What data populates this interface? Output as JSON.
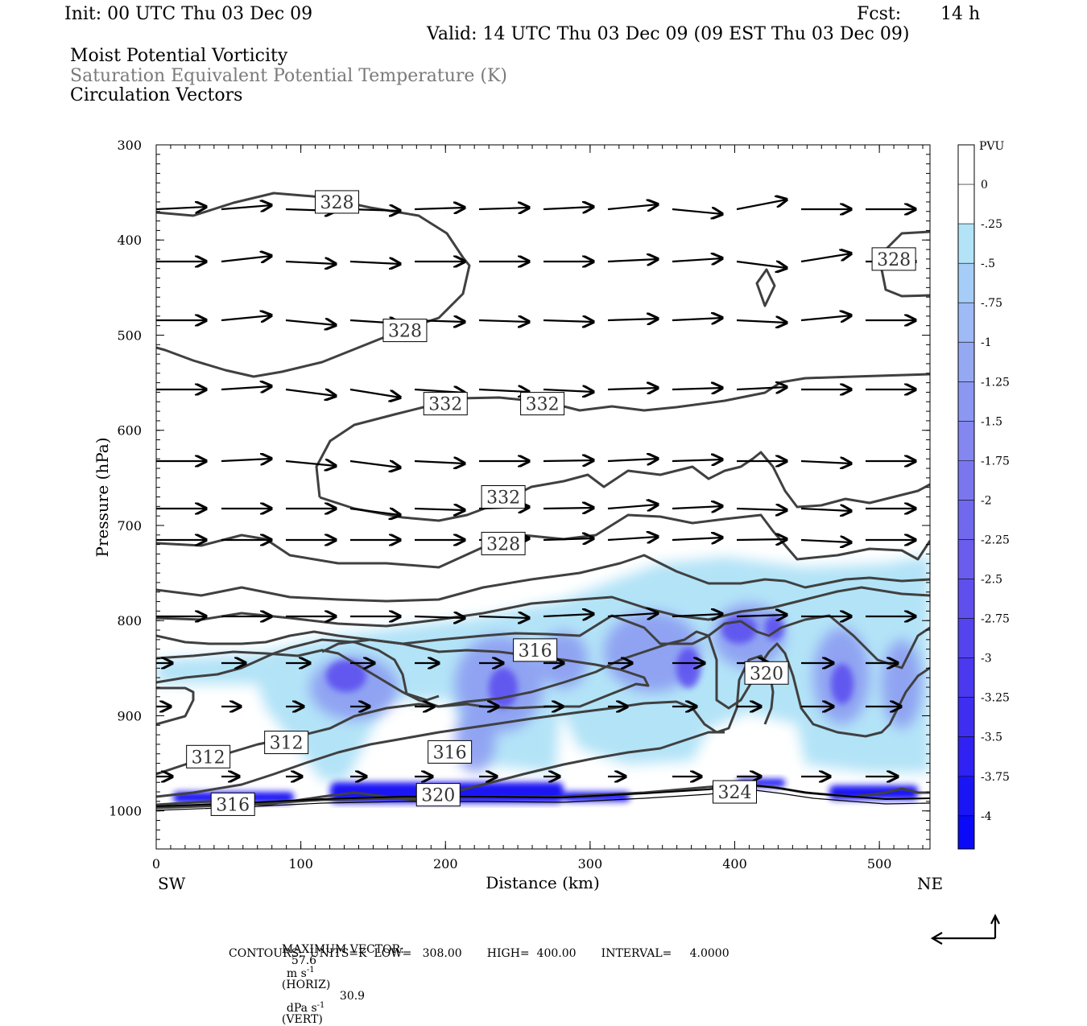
{
  "header": {
    "init": "Init: 00 UTC Thu 03 Dec 09",
    "fcst_label": "Fcst:",
    "fcst_value": "14 h",
    "valid": "Valid: 14 UTC Thu 03 Dec 09 (09 EST Thu 03 Dec 09)",
    "field1": "Moist Potential Vorticity",
    "field2": "Saturation Equivalent Potential Temperature (K)",
    "field3": "Circulation Vectors"
  },
  "colors": {
    "contour": "#404040",
    "shading": [
      "#ffffff",
      "#ffffff",
      "#b3e3f7",
      "#a6cdf7",
      "#9ebbf5",
      "#95a9f3",
      "#8b97f1",
      "#8487ef",
      "#7a77ee",
      "#7069ed",
      "#6a5dee",
      "#5f50ee",
      "#5444ee",
      "#4a39ef",
      "#3e2ef0",
      "#2f22f2",
      "#1a15f5"
    ]
  },
  "chart_data": {
    "type": "contour",
    "title": "Moist Potential Vorticity",
    "xlabel": "Distance (km)",
    "ylabel": "Pressure (hPa)",
    "xlim": [
      0,
      535
    ],
    "ylim": [
      1040,
      300
    ],
    "x_ticks": [
      0,
      100,
      200,
      300,
      400,
      500
    ],
    "y_ticks": [
      300,
      400,
      500,
      600,
      700,
      800,
      900,
      1000
    ],
    "x_end_labels": [
      "SW",
      "NE"
    ],
    "colorbar": {
      "unit": "PVU",
      "labels": [
        "0",
        "-.25",
        "-.5",
        "-.75",
        "-1",
        "-1.25",
        "-1.5",
        "-1.75",
        "-2",
        "-2.25",
        "-2.5",
        "-2.75",
        "-3",
        "-3.25",
        "-3.5",
        "-3.75",
        "-4"
      ]
    },
    "contour_labels": [
      {
        "text": "328",
        "x": 125,
        "p": 360
      },
      {
        "text": "328",
        "x": 172,
        "p": 495
      },
      {
        "text": "328",
        "x": 510,
        "p": 420
      },
      {
        "text": "332",
        "x": 200,
        "p": 572
      },
      {
        "text": "332",
        "x": 267,
        "p": 572
      },
      {
        "text": "332",
        "x": 240,
        "p": 670
      },
      {
        "text": "328",
        "x": 240,
        "p": 719
      },
      {
        "text": "316",
        "x": 262,
        "p": 831
      },
      {
        "text": "320",
        "x": 422,
        "p": 855
      },
      {
        "text": "312",
        "x": 90,
        "p": 928
      },
      {
        "text": "312",
        "x": 36,
        "p": 943
      },
      {
        "text": "316",
        "x": 203,
        "p": 938
      },
      {
        "text": "316",
        "x": 53,
        "p": 993
      },
      {
        "text": "320",
        "x": 195,
        "p": 983
      },
      {
        "text": "324",
        "x": 400,
        "p": 980
      }
    ]
  },
  "footer": {
    "max_vector_label": "MAXIMUM VECTOR:",
    "max_h_value": "57.6",
    "max_h_unit": "m s",
    "max_h_tag": "(HORIZ)",
    "max_v_value": "30.9",
    "max_v_unit": "dPa s",
    "max_v_tag": "(VERT)",
    "exponent": "-1",
    "contours_line": "CONTOURS:  UNITS=K  LOW=   308.00       HIGH=  400.00       INTERVAL=     4.0000"
  }
}
